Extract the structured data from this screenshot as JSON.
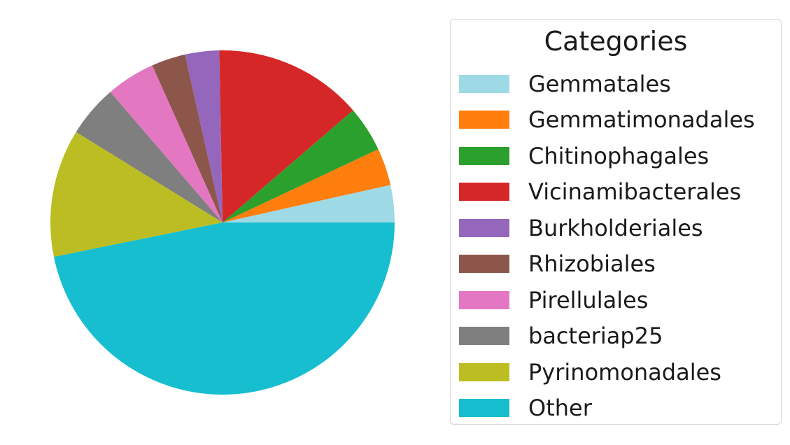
{
  "chart_data": {
    "type": "pie",
    "title": "",
    "start_angle": 0,
    "direction": "counterclockwise",
    "slices": [
      {
        "label": "Gemmatales",
        "value": 3.5,
        "color": "#9edae5"
      },
      {
        "label": "Gemmatimonadales",
        "value": 3.5,
        "color": "#ff7f0e"
      },
      {
        "label": "Chitinophagales",
        "value": 4.3,
        "color": "#2ca02c"
      },
      {
        "label": "Vicinamibacterales",
        "value": 14.0,
        "color": "#d62728"
      },
      {
        "label": "Burkholderiales",
        "value": 3.2,
        "color": "#9467bd"
      },
      {
        "label": "Rhizobiales",
        "value": 3.2,
        "color": "#8c564b"
      },
      {
        "label": "Pirellulales",
        "value": 4.6,
        "color": "#e377c2"
      },
      {
        "label": "bacteriap25",
        "value": 4.9,
        "color": "#7f7f7f"
      },
      {
        "label": "Pyrinomonadales",
        "value": 12.0,
        "color": "#bcbd22"
      },
      {
        "label": "Other",
        "value": 46.8,
        "color": "#17becf"
      }
    ],
    "legend": {
      "title": "Categories",
      "placement": "right"
    }
  }
}
